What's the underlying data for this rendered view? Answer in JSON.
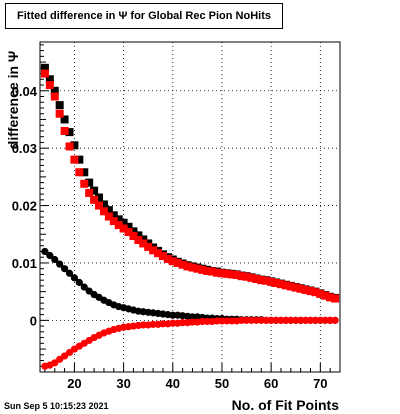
{
  "chart_data": {
    "type": "scatter",
    "title": "Fitted difference in  Ψ  for Global Rec Pion NoHits",
    "xlabel": "No. of Fit Points",
    "ylabel": "difference in  Ψ",
    "xlim": [
      13,
      74
    ],
    "ylim": [
      -0.009,
      0.0485
    ],
    "xticks": [
      20,
      30,
      40,
      50,
      60,
      70
    ],
    "yticks": [
      0,
      0.01,
      0.02,
      0.03,
      0.04
    ],
    "xtick_labels": [
      "20",
      "30",
      "40",
      "50",
      "60",
      "70"
    ],
    "ytick_labels": [
      "0",
      "0.01",
      "0.02",
      "0.03",
      "0.04"
    ],
    "grid": true,
    "legend": "none",
    "series": [
      {
        "marker": "square",
        "color": "#000000",
        "x": [
          14,
          15,
          16,
          17,
          18,
          19,
          20,
          21,
          22,
          23,
          24,
          25,
          26,
          27,
          28,
          29,
          30,
          31,
          32,
          33,
          34,
          35,
          36,
          37,
          38,
          39,
          40,
          41,
          42,
          43,
          44,
          45,
          46,
          47,
          48,
          49,
          50,
          51,
          52,
          53,
          54,
          55,
          56,
          57,
          58,
          59,
          60,
          61,
          62,
          63,
          64,
          65,
          66,
          67,
          68,
          69,
          70,
          71,
          72,
          73
        ],
        "y": [
          0.044,
          0.042,
          0.04,
          0.0375,
          0.035,
          0.0328,
          0.0305,
          0.028,
          0.0258,
          0.024,
          0.0226,
          0.0214,
          0.0202,
          0.0192,
          0.0183,
          0.0176,
          0.017,
          0.0163,
          0.0155,
          0.0148,
          0.0141,
          0.0134,
          0.0127,
          0.0121,
          0.0115,
          0.011,
          0.0106,
          0.0102,
          0.0099,
          0.0096,
          0.0094,
          0.0092,
          0.009,
          0.0088,
          0.0086,
          0.0085,
          0.0083,
          0.0082,
          0.0081,
          0.008,
          0.0078,
          0.0077,
          0.0075,
          0.0073,
          0.0071,
          0.007,
          0.0068,
          0.0066,
          0.0064,
          0.0062,
          0.006,
          0.0058,
          0.0056,
          0.0054,
          0.0052,
          0.005,
          0.0047,
          0.0044,
          0.0041,
          0.0039
        ]
      },
      {
        "marker": "square",
        "color": "#ff0000",
        "x": [
          14,
          15,
          16,
          17,
          18,
          19,
          20,
          21,
          22,
          23,
          24,
          25,
          26,
          27,
          28,
          29,
          30,
          31,
          32,
          33,
          34,
          35,
          36,
          37,
          38,
          39,
          40,
          41,
          42,
          43,
          44,
          45,
          46,
          47,
          48,
          49,
          50,
          51,
          52,
          53,
          54,
          55,
          56,
          57,
          58,
          59,
          60,
          61,
          62,
          63,
          64,
          65,
          66,
          67,
          68,
          69,
          70,
          71,
          72,
          73
        ],
        "y": [
          0.043,
          0.041,
          0.039,
          0.036,
          0.033,
          0.0303,
          0.028,
          0.0258,
          0.0238,
          0.0222,
          0.021,
          0.02,
          0.019,
          0.0181,
          0.0173,
          0.0166,
          0.016,
          0.0154,
          0.0147,
          0.014,
          0.0134,
          0.0128,
          0.0122,
          0.0117,
          0.0112,
          0.0107,
          0.0103,
          0.01,
          0.0097,
          0.0094,
          0.0092,
          0.009,
          0.0088,
          0.0086,
          0.0085,
          0.0083,
          0.0082,
          0.0081,
          0.008,
          0.0079,
          0.0077,
          0.0076,
          0.0074,
          0.0072,
          0.007,
          0.0069,
          0.0067,
          0.0065,
          0.0063,
          0.0061,
          0.0059,
          0.0057,
          0.0055,
          0.0053,
          0.0051,
          0.0049,
          0.0046,
          0.0043,
          0.004,
          0.0038
        ]
      },
      {
        "marker": "circle",
        "color": "#000000",
        "x": [
          14,
          15,
          16,
          17,
          18,
          19,
          20,
          21,
          22,
          23,
          24,
          25,
          26,
          27,
          28,
          29,
          30,
          31,
          32,
          33,
          34,
          35,
          36,
          37,
          38,
          39,
          40,
          41,
          42,
          43,
          44,
          45,
          46,
          47,
          48,
          49,
          50,
          51,
          52,
          53,
          54,
          55,
          56,
          57,
          58,
          59,
          60,
          61,
          62,
          63,
          64,
          65,
          66,
          67,
          68,
          69,
          70,
          71,
          72,
          73
        ],
        "y": [
          0.012,
          0.0113,
          0.0106,
          0.0098,
          0.009,
          0.0082,
          0.0074,
          0.0066,
          0.0058,
          0.0051,
          0.0045,
          0.004,
          0.0035,
          0.0031,
          0.0027,
          0.0024,
          0.0022,
          0.002,
          0.0018,
          0.0016,
          0.0015,
          0.0014,
          0.0013,
          0.0012,
          0.0011,
          0.001,
          0.0009,
          0.0009,
          0.0008,
          0.0007,
          0.0006,
          0.0006,
          0.0005,
          0.0004,
          0.0004,
          0.0003,
          0.0003,
          0.0002,
          0.0002,
          0.0002,
          0.0001,
          0.0001,
          0.0001,
          0.0001,
          0.0001,
          0.0,
          0.0,
          0.0,
          0.0,
          0.0,
          0.0,
          0.0,
          0.0,
          0.0,
          0.0,
          0.0,
          0.0,
          0.0,
          0.0,
          0.0
        ]
      },
      {
        "marker": "circle",
        "color": "#ff0000",
        "x": [
          14,
          15,
          16,
          17,
          18,
          19,
          20,
          21,
          22,
          23,
          24,
          25,
          26,
          27,
          28,
          29,
          30,
          31,
          32,
          33,
          34,
          35,
          36,
          37,
          38,
          39,
          40,
          41,
          42,
          43,
          44,
          45,
          46,
          47,
          48,
          49,
          50,
          51,
          52,
          53,
          54,
          55,
          56,
          57,
          58,
          59,
          60,
          61,
          62,
          63,
          64,
          65,
          66,
          67,
          68,
          69,
          70,
          71,
          72,
          73
        ],
        "y": [
          -0.008,
          -0.0078,
          -0.0074,
          -0.0068,
          -0.0062,
          -0.0056,
          -0.005,
          -0.0045,
          -0.004,
          -0.0035,
          -0.003,
          -0.0026,
          -0.0022,
          -0.0019,
          -0.0016,
          -0.0014,
          -0.0012,
          -0.0011,
          -0.001,
          -0.0009,
          -0.0008,
          -0.0008,
          -0.0007,
          -0.0007,
          -0.0006,
          -0.0006,
          -0.0005,
          -0.0005,
          -0.0004,
          -0.0004,
          -0.0003,
          -0.0003,
          -0.0002,
          -0.0002,
          -0.0002,
          -0.0001,
          -0.0001,
          -0.0001,
          -0.0001,
          -0.0001,
          0.0,
          0.0,
          0.0,
          0.0,
          0.0,
          0.0,
          0.0,
          0.0,
          0.0,
          0.0,
          0.0,
          0.0,
          0.0,
          0.0,
          0.0,
          0.0,
          0.0,
          0.0,
          0.0,
          0.0
        ]
      }
    ]
  },
  "footer": {
    "date": "Sun Sep  5 10:15:23 2021"
  }
}
